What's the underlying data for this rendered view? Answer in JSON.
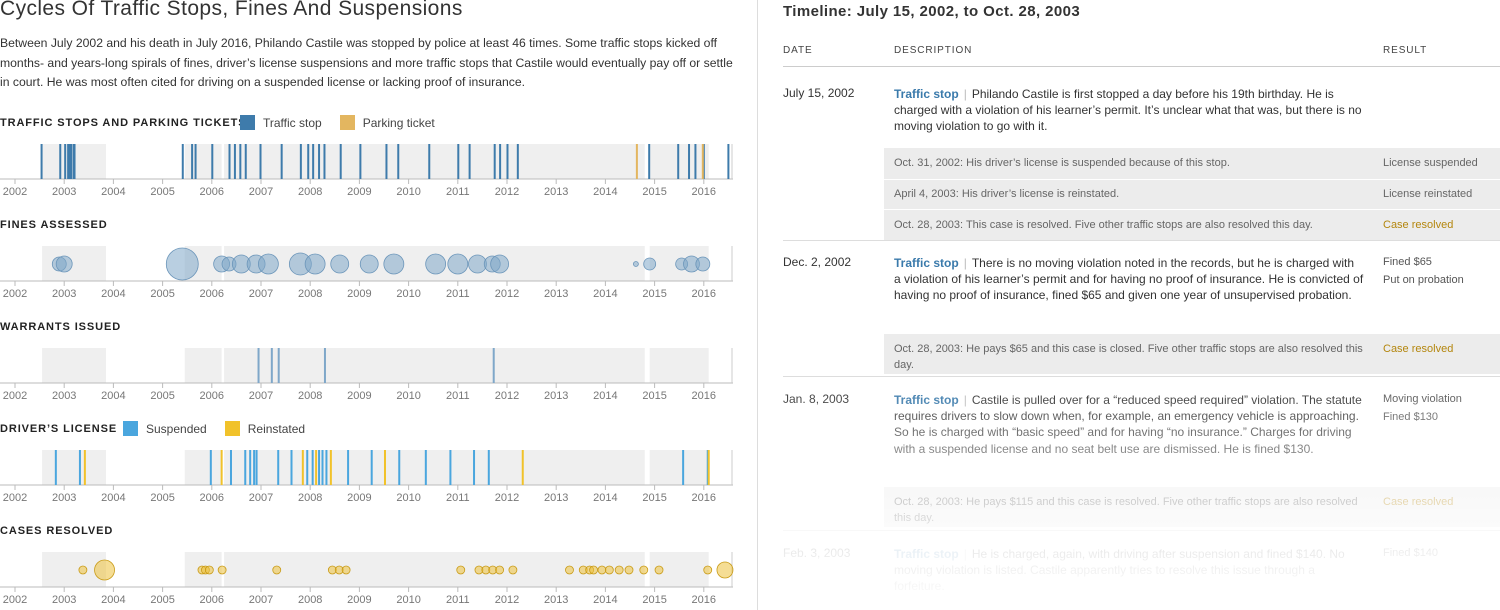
{
  "left": {
    "title": "Cycles Of Traffic Stops, Fines And Suspensions",
    "intro": "Between July 2002 and his death in July 2016, Philando Castile was stopped by police at least 46 times. Some traffic stops kicked off months- and years-long spirals of fines, driver’s license suspensions and more traffic stops that Castile would eventually pay off or settle in court. He was most often cited for driving on a suspended license or lacking proof of insurance."
  },
  "sections": {
    "stops": {
      "label": "TRAFFIC STOPS AND PARKING TICKETS",
      "legend": [
        "Traffic stop",
        "Parking ticket"
      ]
    },
    "fines": {
      "label": "FINES ASSESSED"
    },
    "warrants": {
      "label": "WARRANTS ISSUED"
    },
    "license": {
      "label": "DRIVER’S LICENSE",
      "legend": [
        "Suspended",
        "Reinstated"
      ]
    },
    "cases": {
      "label": "CASES RESOLVED"
    }
  },
  "colors": {
    "traffic_stop": "#3e7bab",
    "parking_ticket": "#e3b660",
    "suspended": "#4aa6de",
    "reinstated": "#f1c22a",
    "fine_bubble": "#7fa7c9",
    "case_bubble": "#ecc13d",
    "shade": "#efefef",
    "gold_text": "#b4860d"
  },
  "chart_data": [
    {
      "type": "timeline-ticks",
      "title": "TRAFFIC STOPS AND PARKING TICKETS",
      "x_ticks": [
        "2002",
        "2003",
        "2004",
        "2005",
        "2006",
        "2007",
        "2008",
        "2009",
        "2010",
        "2011",
        "2012",
        "2013",
        "2014",
        "2015",
        "2016"
      ],
      "xlim": [
        2002.0,
        2016.6
      ],
      "series": [
        {
          "name": "Traffic stop",
          "x": [
            2002.54,
            2002.92,
            2003.02,
            2003.08,
            2003.11,
            2003.14,
            2003.19,
            2003.21,
            2005.41,
            2005.6,
            2005.67,
            2006.01,
            2006.36,
            2006.47,
            2006.58,
            2006.69,
            2006.99,
            2007.42,
            2007.81,
            2007.96,
            2008.06,
            2008.18,
            2008.29,
            2008.62,
            2009.02,
            2009.55,
            2009.79,
            2010.42,
            2011.01,
            2011.24,
            2011.75,
            2011.86,
            2012.01,
            2012.22,
            2014.89,
            2015.48,
            2015.7,
            2015.83,
            2016.0,
            2016.5
          ]
        },
        {
          "name": "Parking ticket",
          "x": [
            2014.64,
            2015.98
          ]
        }
      ]
    },
    {
      "type": "timeline-bubbles",
      "title": "FINES ASSESSED",
      "x_ticks": [
        "2002",
        "2003",
        "2004",
        "2005",
        "2006",
        "2007",
        "2008",
        "2009",
        "2010",
        "2011",
        "2012",
        "2013",
        "2014",
        "2015",
        "2016"
      ],
      "points": [
        {
          "x": 2002.9,
          "size": 7
        },
        {
          "x": 2003.0,
          "size": 8
        },
        {
          "x": 2005.4,
          "size": 16
        },
        {
          "x": 2006.2,
          "size": 8
        },
        {
          "x": 2006.35,
          "size": 7
        },
        {
          "x": 2006.6,
          "size": 9
        },
        {
          "x": 2006.9,
          "size": 9
        },
        {
          "x": 2007.15,
          "size": 10
        },
        {
          "x": 2007.8,
          "size": 11
        },
        {
          "x": 2008.1,
          "size": 10
        },
        {
          "x": 2008.6,
          "size": 9
        },
        {
          "x": 2009.2,
          "size": 9
        },
        {
          "x": 2009.7,
          "size": 10
        },
        {
          "x": 2010.55,
          "size": 10
        },
        {
          "x": 2011.0,
          "size": 10
        },
        {
          "x": 2011.4,
          "size": 9
        },
        {
          "x": 2011.7,
          "size": 8
        },
        {
          "x": 2011.85,
          "size": 9
        },
        {
          "x": 2014.62,
          "size": 2.5
        },
        {
          "x": 2014.9,
          "size": 6
        },
        {
          "x": 2015.55,
          "size": 6
        },
        {
          "x": 2015.75,
          "size": 8
        },
        {
          "x": 2015.98,
          "size": 7
        }
      ]
    },
    {
      "type": "timeline-ticks",
      "title": "WARRANTS ISSUED",
      "x_ticks": [
        "2002",
        "2003",
        "2004",
        "2005",
        "2006",
        "2007",
        "2008",
        "2009",
        "2010",
        "2011",
        "2012",
        "2013",
        "2014",
        "2015",
        "2016"
      ],
      "series": [
        {
          "name": "Warrant",
          "x": [
            2006.95,
            2007.22,
            2007.36,
            2008.3,
            2011.73
          ]
        }
      ]
    },
    {
      "type": "timeline-ticks",
      "title": "DRIVER’S LICENSE",
      "x_ticks": [
        "2002",
        "2003",
        "2004",
        "2005",
        "2006",
        "2007",
        "2008",
        "2009",
        "2010",
        "2011",
        "2012",
        "2013",
        "2014",
        "2015",
        "2016"
      ],
      "series": [
        {
          "name": "Suspended",
          "x": [
            2002.83,
            2003.32,
            2005.98,
            2006.39,
            2006.68,
            2006.78,
            2006.86,
            2006.91,
            2007.35,
            2007.62,
            2007.94,
            2008.05,
            2008.18,
            2008.25,
            2008.33,
            2008.77,
            2009.25,
            2009.81,
            2010.35,
            2010.85,
            2011.33,
            2011.63,
            2015.58,
            2016.08
          ]
        },
        {
          "name": "Reinstated",
          "x": [
            2003.42,
            2006.2,
            2007.85,
            2008.12,
            2008.42,
            2009.52,
            2012.32,
            2016.1
          ]
        }
      ]
    },
    {
      "type": "timeline-bubbles",
      "title": "CASES RESOLVED",
      "x_ticks": [
        "2002",
        "2003",
        "2004",
        "2005",
        "2006",
        "2007",
        "2008",
        "2009",
        "2010",
        "2011",
        "2012",
        "2013",
        "2014",
        "2015",
        "2016"
      ],
      "points": [
        {
          "x": 2003.38,
          "size": 4
        },
        {
          "x": 2003.82,
          "size": 10
        },
        {
          "x": 2005.8,
          "size": 4
        },
        {
          "x": 2005.87,
          "size": 4
        },
        {
          "x": 2005.95,
          "size": 4
        },
        {
          "x": 2006.21,
          "size": 4
        },
        {
          "x": 2007.32,
          "size": 4
        },
        {
          "x": 2008.45,
          "size": 4
        },
        {
          "x": 2008.59,
          "size": 4
        },
        {
          "x": 2008.73,
          "size": 4
        },
        {
          "x": 2011.06,
          "size": 4
        },
        {
          "x": 2011.43,
          "size": 4
        },
        {
          "x": 2011.57,
          "size": 4
        },
        {
          "x": 2011.71,
          "size": 4
        },
        {
          "x": 2011.85,
          "size": 4
        },
        {
          "x": 2012.12,
          "size": 4
        },
        {
          "x": 2013.27,
          "size": 4
        },
        {
          "x": 2013.55,
          "size": 4
        },
        {
          "x": 2013.68,
          "size": 4
        },
        {
          "x": 2013.76,
          "size": 4
        },
        {
          "x": 2013.93,
          "size": 4
        },
        {
          "x": 2014.08,
          "size": 4
        },
        {
          "x": 2014.28,
          "size": 4
        },
        {
          "x": 2014.48,
          "size": 4
        },
        {
          "x": 2014.78,
          "size": 4
        },
        {
          "x": 2015.09,
          "size": 4
        },
        {
          "x": 2016.08,
          "size": 4
        },
        {
          "x": 2016.43,
          "size": 8
        }
      ]
    }
  ],
  "timeline": {
    "title": "Timeline: July 15, 2002, to Oct. 28, 2003",
    "columns": {
      "date": "DATE",
      "description": "DESCRIPTION",
      "result": "RESULT"
    },
    "entries": [
      {
        "date": "July 15, 2002",
        "tag": "Traffic stop",
        "text": "Philando Castile is first stopped a day before his 19th birthday. He is charged with a violation of his learner’s permit. It’s unclear what that was, but there is no moving violation to go with it.",
        "results": [],
        "subrows": [
          {
            "text": "Oct. 31, 2002: His driver’s license is suspended because of this stop.",
            "result": "License suspended"
          },
          {
            "text": "April 4, 2003: His driver’s license is reinstated.",
            "result": "License reinstated"
          },
          {
            "text": "Oct. 28, 2003: This case is resolved. Five other traffic stops are also resolved this day.",
            "result": "Case resolved"
          }
        ]
      },
      {
        "date": "Dec. 2, 2002",
        "tag": "Traffic stop",
        "text": "There is no moving violation noted in the records, but he is charged with a violation of his learner’s permit and for having no proof of insurance. He is convicted of having no proof of insurance, fined $65 and given one year of unsupervised probation.",
        "results": [
          "Fined $65",
          "Put on probation"
        ],
        "subrows": [
          {
            "text": "Oct. 28, 2003: He pays $65 and this case is closed. Five other traffic stops are also resolved this day.",
            "result": "Case resolved"
          }
        ]
      },
      {
        "date": "Jan. 8, 2003",
        "tag": "Traffic stop",
        "text": "Castile is pulled over for a “reduced speed required” violation. The statute requires drivers to slow down when, for example, an emergency vehicle is approaching. So he is charged with “basic speed” and for having “no insurance.” Charges for driving with a suspended license and no seat belt use are dismissed. He is fined $130.",
        "results": [
          "Moving violation",
          "Fined $130"
        ],
        "subrows": [
          {
            "text": "Oct. 28, 2003: He pays $115 and this case is resolved. Five other traffic stops are also resolved this day.",
            "result": "Case resolved"
          }
        ]
      },
      {
        "date": "Feb. 3, 2003",
        "tag": "Traffic stop",
        "text": "He is charged, again, with driving after suspension and fined $140. No moving violation is listed. Castile apparently tries to resolve this issue through a forfeiture.",
        "results": [
          "Fined $140"
        ],
        "subrows": []
      }
    ]
  }
}
